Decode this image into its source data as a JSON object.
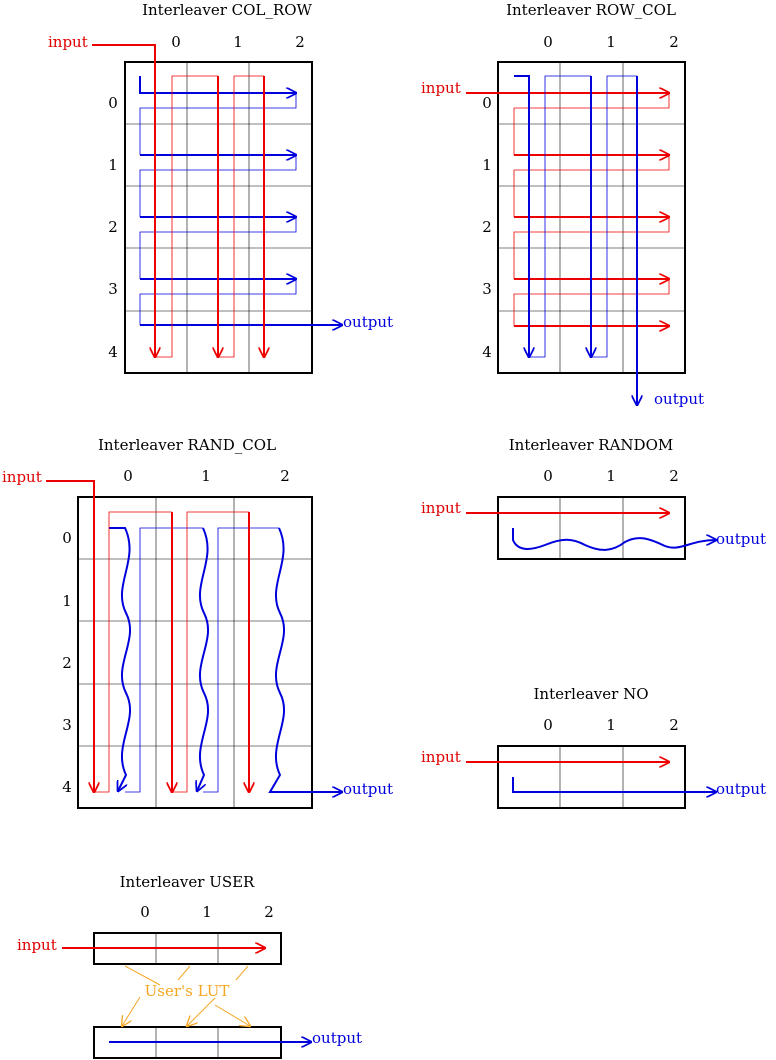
{
  "colors": {
    "input": "#ee0000",
    "output": "#0000dd",
    "lut": "#f5a623",
    "grid": "#000000"
  },
  "labels": {
    "input": "input",
    "output": "output",
    "user_lut": "User's LUT"
  },
  "interleavers": {
    "col_row": {
      "title": "Interleaver COL_ROW",
      "cols": [
        "0",
        "1",
        "2"
      ],
      "rows": [
        "0",
        "1",
        "2",
        "3",
        "4"
      ]
    },
    "row_col": {
      "title": "Interleaver ROW_COL",
      "cols": [
        "0",
        "1",
        "2"
      ],
      "rows": [
        "0",
        "1",
        "2",
        "3",
        "4"
      ]
    },
    "rand_col": {
      "title": "Interleaver RAND_COL",
      "cols": [
        "0",
        "1",
        "2"
      ],
      "rows": [
        "0",
        "1",
        "2",
        "3",
        "4"
      ]
    },
    "random": {
      "title": "Interleaver RANDOM",
      "cols": [
        "0",
        "1",
        "2"
      ]
    },
    "no": {
      "title": "Interleaver NO",
      "cols": [
        "0",
        "1",
        "2"
      ]
    },
    "user": {
      "title": "Interleaver USER",
      "cols": [
        "0",
        "1",
        "2"
      ]
    }
  }
}
